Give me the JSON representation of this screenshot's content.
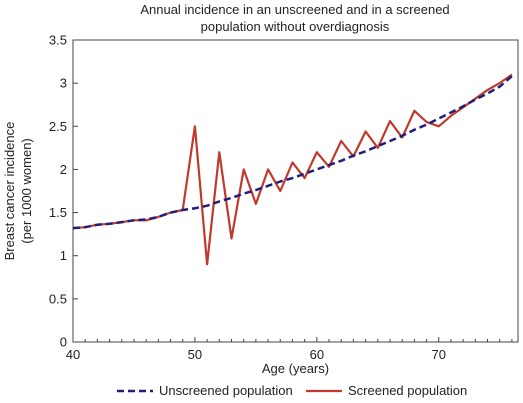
{
  "chart_data": {
    "type": "line",
    "title_lines": [
      "Annual incidence in an unscreened and in a screened",
      "population without overdiagnosis"
    ],
    "xlabel": "Age (years)",
    "ylabel_lines": [
      "Breast cancer incidence",
      "(per 1000 women)"
    ],
    "xlim": [
      40,
      76.5
    ],
    "ylim": [
      0,
      3.5
    ],
    "xticks": [
      "40",
      "50",
      "60",
      "70"
    ],
    "yticks": [
      "0",
      "0.5",
      "1",
      "1.5",
      "2",
      "2.5",
      "3",
      "3.5"
    ],
    "grid": false,
    "legend_position": "bottom",
    "series": [
      {
        "name": "Unscreened population",
        "color": "#1f1f7a",
        "style": "dashed",
        "x": [
          40,
          41,
          42,
          43,
          44,
          45,
          46,
          47,
          48,
          49,
          50,
          51,
          52,
          53,
          54,
          55,
          56,
          57,
          58,
          59,
          60,
          61,
          62,
          63,
          64,
          65,
          66,
          67,
          68,
          69,
          70,
          71,
          72,
          73,
          74,
          75,
          76
        ],
        "values": [
          1.32,
          1.33,
          1.36,
          1.37,
          1.39,
          1.41,
          1.42,
          1.45,
          1.5,
          1.53,
          1.55,
          1.58,
          1.63,
          1.67,
          1.72,
          1.76,
          1.81,
          1.86,
          1.9,
          1.95,
          2.0,
          2.05,
          2.1,
          2.16,
          2.21,
          2.27,
          2.33,
          2.39,
          2.46,
          2.52,
          2.59,
          2.66,
          2.73,
          2.81,
          2.88,
          2.96,
          3.08
        ]
      },
      {
        "name": "Screened population",
        "color": "#c0392b",
        "style": "solid",
        "x": [
          40,
          41,
          42,
          43,
          44,
          45,
          46,
          47,
          48,
          49,
          50,
          51,
          52,
          53,
          54,
          55,
          56,
          57,
          58,
          59,
          60,
          61,
          62,
          63,
          64,
          65,
          66,
          67,
          68,
          69,
          70,
          71,
          72,
          73,
          74,
          75,
          76
        ],
        "values": [
          1.32,
          1.33,
          1.36,
          1.37,
          1.39,
          1.41,
          1.41,
          1.45,
          1.5,
          1.53,
          2.5,
          0.9,
          2.2,
          1.2,
          2.0,
          1.6,
          2.0,
          1.75,
          2.08,
          1.9,
          2.2,
          2.03,
          2.33,
          2.15,
          2.44,
          2.25,
          2.56,
          2.37,
          2.68,
          2.55,
          2.5,
          2.62,
          2.72,
          2.82,
          2.92,
          3.0,
          3.1
        ]
      }
    ]
  }
}
